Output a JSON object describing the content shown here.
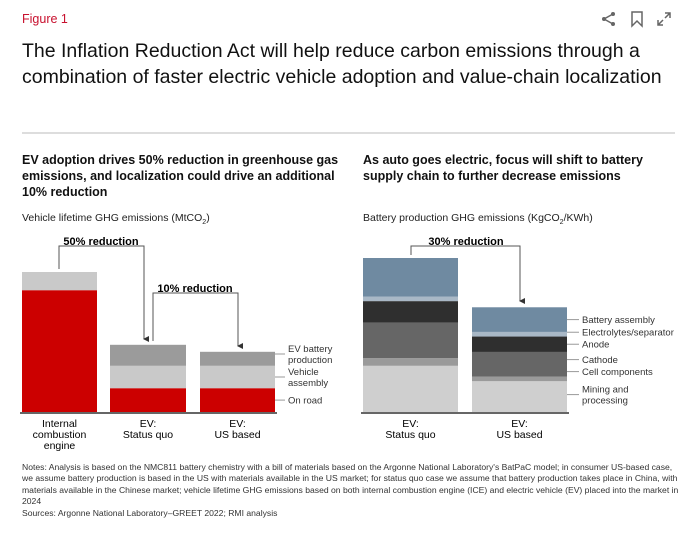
{
  "header": {
    "figure_label": "Figure 1",
    "title": "The Inflation Reduction Act will help reduce carbon emissions through a combination of faster electric vehicle adoption and value-chain localization",
    "icons": [
      "share-icon",
      "bookmark-icon",
      "expand-icon"
    ]
  },
  "chart_data": [
    {
      "type": "bar",
      "stacked": true,
      "title": "EV adoption drives 50% reduction in greenhouse gas emissions, and localization could drive an additional 10% reduction",
      "ylabel": "Vehicle lifetime GHG emissions (MtCO2)",
      "ylabel_prefix": "Vehicle lifetime GHG emissions (MtCO",
      "ylabel_sub": "2",
      "ylabel_suffix": ")",
      "categories": [
        [
          "Internal",
          "combustion",
          "engine"
        ],
        [
          "EV:",
          "Status quo"
        ],
        [
          "EV:",
          "US based"
        ]
      ],
      "series": [
        {
          "name": "On road",
          "color": "#cc0000",
          "values": [
            87,
            17,
            17
          ]
        },
        {
          "name": "Vehicle assembly",
          "label_lines": [
            "Vehicle",
            "assembly"
          ],
          "color": "#c9c9c9",
          "values": [
            13,
            16,
            16
          ]
        },
        {
          "name": "EV battery production",
          "label_lines": [
            "EV battery",
            "production"
          ],
          "color": "#9b9b9b",
          "values": [
            0,
            15,
            10
          ]
        }
      ],
      "annotations": [
        "50% reduction",
        "10% reduction"
      ],
      "axis_note": "relative index, ICE = 100"
    },
    {
      "type": "bar",
      "stacked": true,
      "title": "As auto goes electric, focus will shift to battery supply chain to further decrease emissions",
      "ylabel": "Battery production GHG emissions (KgCO2/KWh)",
      "ylabel_prefix": "Battery production GHG emissions (KgCO",
      "ylabel_sub": "2",
      "ylabel_suffix": "/KWh)",
      "categories": [
        [
          "EV:",
          "Status quo"
        ],
        [
          "EV:",
          "US based"
        ]
      ],
      "series": [
        {
          "name": "Mining and processing",
          "label_lines": [
            "Mining and",
            "processing"
          ],
          "color": "#cfcfcf",
          "values": [
            30,
            20
          ]
        },
        {
          "name": "Cell components",
          "color": "#9a9a9a",
          "values": [
            5,
            3
          ]
        },
        {
          "name": "Cathode",
          "color": "#666666",
          "values": [
            23,
            16
          ]
        },
        {
          "name": "Anode",
          "color": "#2f2f2f",
          "values": [
            14,
            10
          ]
        },
        {
          "name": "Electrolytes/separator",
          "color": "#a9b8c6",
          "values": [
            3,
            3
          ]
        },
        {
          "name": "Battery assembly",
          "color": "#6f8aa1",
          "values": [
            25,
            16
          ]
        }
      ],
      "annotations": [
        "30% reduction"
      ],
      "axis_note": "relative index, status quo = 100"
    }
  ],
  "notes": "Notes: Analysis is based on the NMC811 battery chemistry with a bill of materials based on the Argonne National Laboratory's BatPaC model; in consumer US-based case, we assume battery production is based in the US with materials available in the US market; for status quo case we assume that battery production takes place in China, with materials available in the Chinese market; vehicle lifetime GHG emissions based on both internal combustion engine (ICE) and electric vehicle (EV) placed into the market in 2024",
  "sources": "Sources: Argonne National Laboratory–GREET 2022; RMI analysis"
}
